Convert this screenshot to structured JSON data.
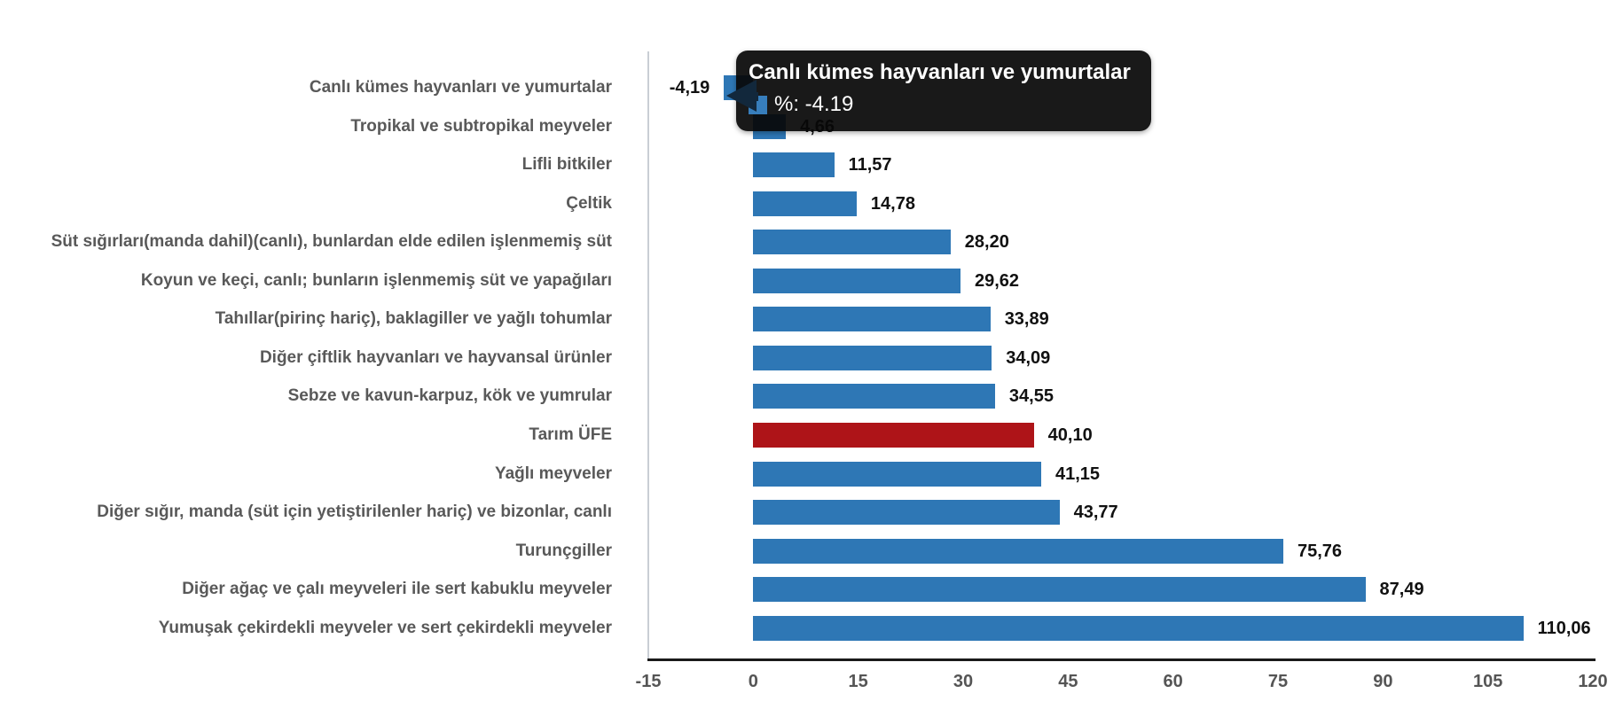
{
  "chart_data": {
    "type": "bar",
    "orientation": "horizontal",
    "title": "",
    "xlabel": "",
    "ylabel": "",
    "xlim": [
      -15,
      120
    ],
    "grid": false,
    "legend": "none",
    "x_ticks": [
      {
        "label": "-15",
        "value": -15
      },
      {
        "label": "0",
        "value": 0
      },
      {
        "label": "15",
        "value": 15
      },
      {
        "label": "30",
        "value": 30
      },
      {
        "label": "45",
        "value": 45
      },
      {
        "label": "60",
        "value": 60
      },
      {
        "label": "75",
        "value": 75
      },
      {
        "label": "90",
        "value": 90
      },
      {
        "label": "105",
        "value": 105
      },
      {
        "label": "120",
        "value": 120
      }
    ],
    "categories": [
      "Canlı kümes hayvanları ve yumurtalar",
      "Tropikal ve subtropikal meyveler",
      "Lifli bitkiler",
      "Çeltik",
      "Süt sığırları(manda dahil)(canlı), bunlardan elde edilen işlenmemiş süt",
      "Koyun ve keçi, canlı; bunların işlenmemiş süt ve yapağıları",
      "Tahıllar(pirinç hariç), baklagiller ve yağlı tohumlar",
      "Diğer çiftlik hayvanları ve hayvansal ürünler",
      "Sebze ve kavun-karpuz, kök ve yumrular",
      "Tarım ÜFE",
      "Yağlı meyveler",
      "Diğer sığır, manda (süt için yetiştirilenler hariç) ve bizonlar, canlı",
      "Turunçgiller",
      "Diğer ağaç ve çalı meyveleri ile sert kabuklu meyveler",
      "Yumuşak çekirdekli meyveler ve sert çekirdekli meyveler"
    ],
    "values": [
      -4.19,
      4.66,
      11.57,
      14.78,
      28.2,
      29.62,
      33.89,
      34.09,
      34.55,
      40.1,
      41.15,
      43.77,
      75.76,
      87.49,
      110.06
    ],
    "value_labels": [
      "-4,19",
      "4,66",
      "11,57",
      "14,78",
      "28,20",
      "29,62",
      "33,89",
      "34,09",
      "34,55",
      "40,10",
      "41,15",
      "43,77",
      "75,76",
      "87,49",
      "110,06"
    ],
    "bar_color": "#2E77B5",
    "highlight_color": "#AE1418",
    "highlight_category": "Tarım ÜFE"
  },
  "tooltip": {
    "title": "Canlı kümes hayvanları ve yumurtalar",
    "value_text": "%: -4.19",
    "marker_color": "#377EBC"
  }
}
